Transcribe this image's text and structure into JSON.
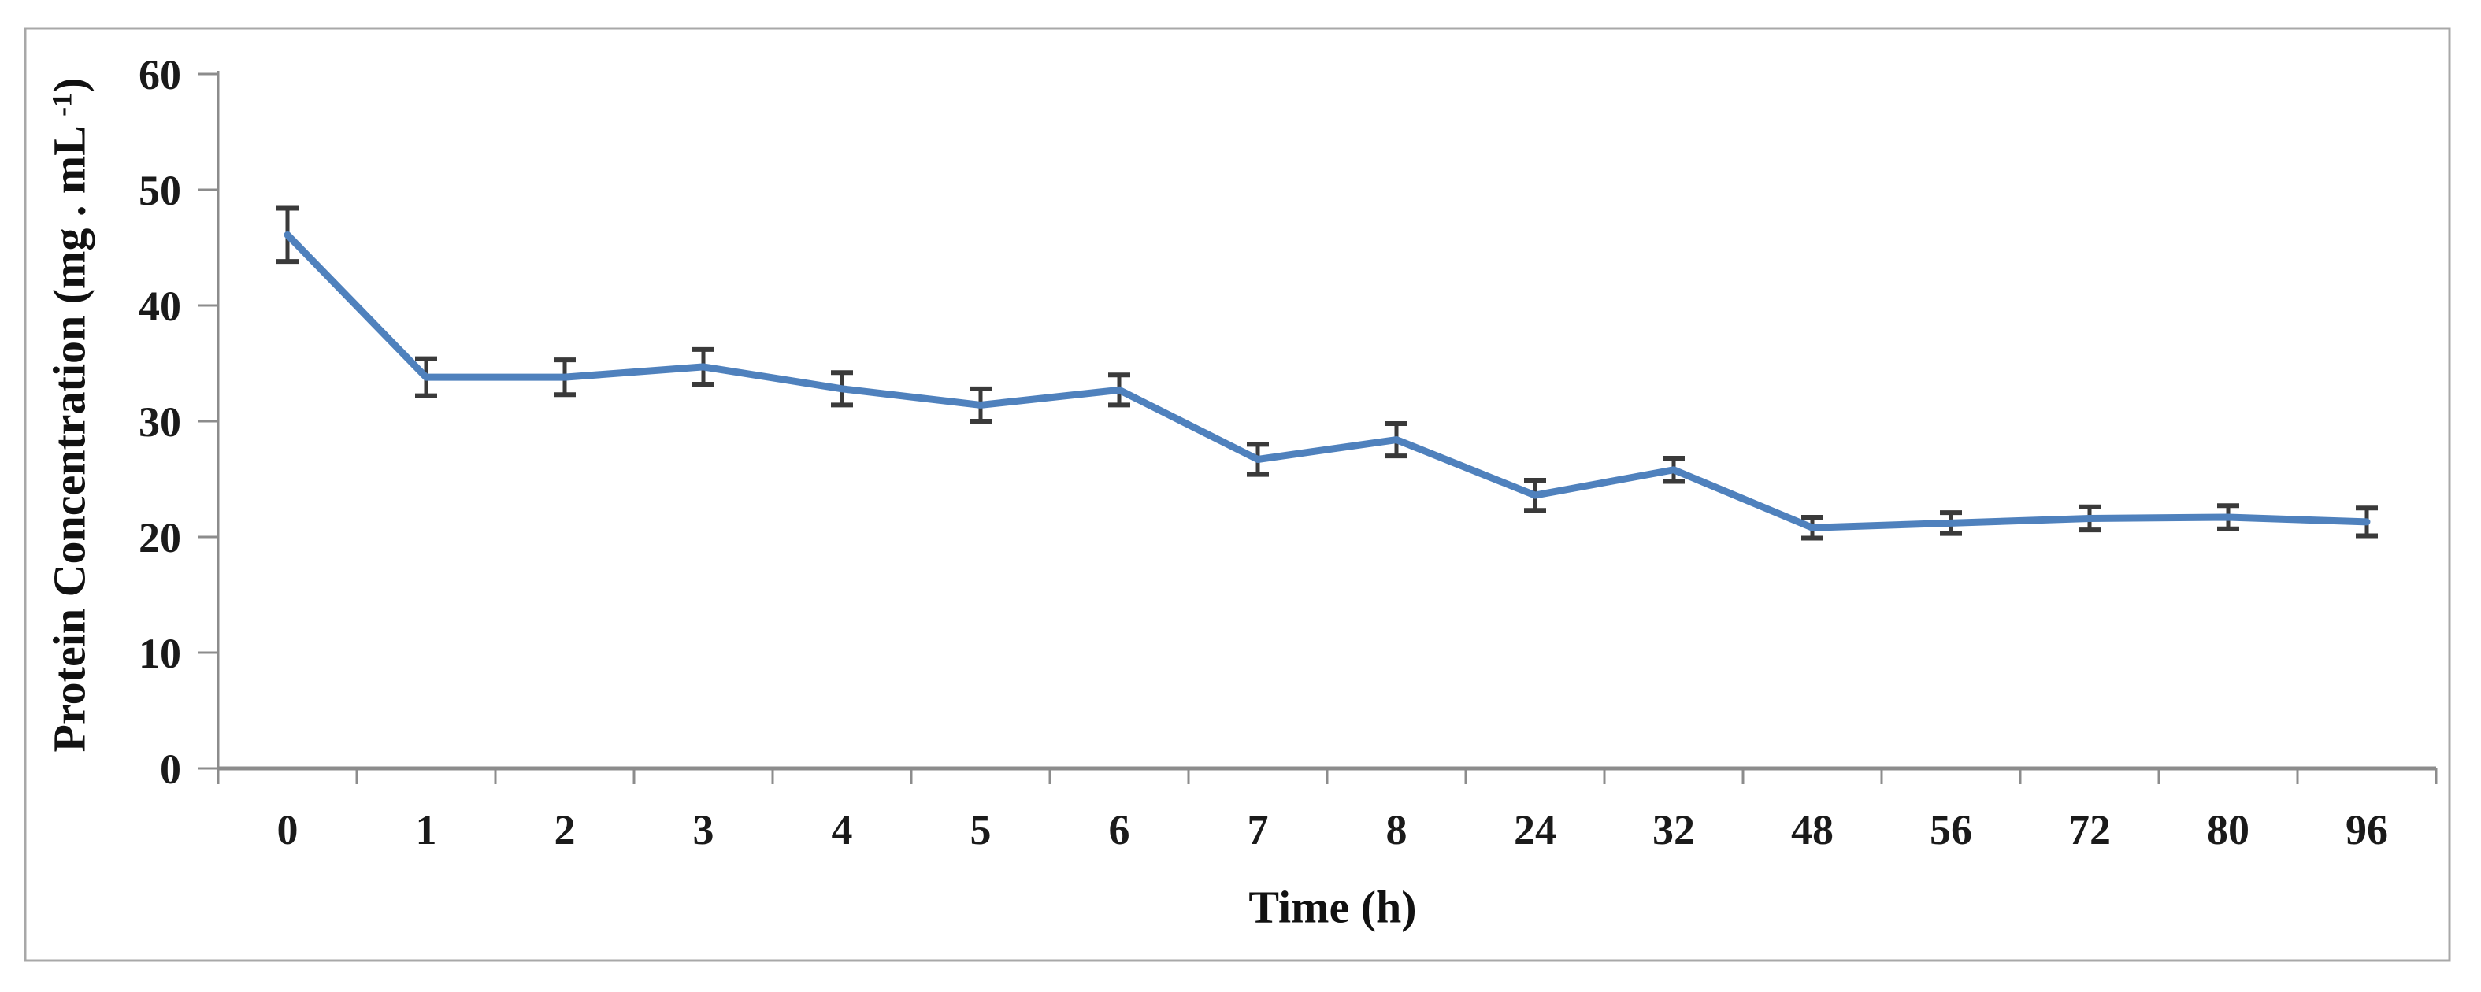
{
  "chart_data": {
    "type": "line",
    "title": "",
    "xlabel": "Time (h)",
    "ylabel": "Protein Concentration (mg . mL -1)",
    "ylabel_parts": {
      "main": "Protein Concentration (mg . mL ",
      "sup": "-1",
      "close": ")"
    },
    "categories": [
      "0",
      "1",
      "2",
      "3",
      "4",
      "5",
      "6",
      "7",
      "8",
      "24",
      "32",
      "48",
      "56",
      "72",
      "80",
      "96"
    ],
    "values": [
      46.1,
      33.8,
      33.8,
      34.7,
      32.8,
      31.4,
      32.7,
      26.7,
      28.4,
      23.6,
      25.8,
      20.8,
      21.2,
      21.6,
      21.7,
      21.3
    ],
    "error_bars": [
      2.3,
      1.6,
      1.5,
      1.5,
      1.4,
      1.4,
      1.3,
      1.3,
      1.4,
      1.3,
      1.0,
      0.9,
      0.9,
      1.0,
      1.0,
      1.2
    ],
    "ylim": [
      0,
      60
    ],
    "ytick_step": 10,
    "ytick_labels": [
      "0",
      "10",
      "20",
      "30",
      "40",
      "50",
      "60"
    ],
    "grid": false,
    "legend": "none",
    "marker": "none",
    "style": {
      "line_color": "#4F81BD",
      "error_bar_color": "#3A3A3A",
      "axis_color": "#8C8C8C",
      "tick_label_color": "#1A1A1A",
      "axis_title_color": "#111111",
      "figure_border_color": "#A8A8A8",
      "background": "#FFFFFF"
    }
  }
}
